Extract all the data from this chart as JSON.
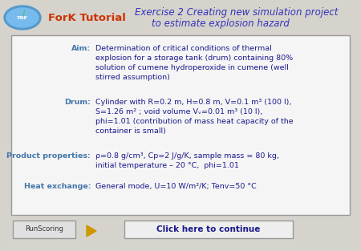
{
  "bg_color": "#d6d3cc",
  "header_fork_color": "#cc3300",
  "header_exercise_color": "#3333bb",
  "box_bg": "#f5f5f5",
  "box_edge": "#aaaaaa",
  "label_color": "#4477aa",
  "text_color": "#1a1a8c",
  "aim_label": "Aim:",
  "aim_text": "Determination of critical conditions of thermal\nexplosion for a storage tank (drum) containing 80%\nsolution of cumene hydroperoxide in cumene (well\nstirred assumption)",
  "drum_label": "Drum:",
  "drum_text": "Cylinder with R=0.2 m, H=0.8 m, V=0.1 m³ (100 l),\nS=1.26 m² ; void volume Vᵥ=0.01 m³ (10 l),\nphi=1.01 (contribution of mass heat capacity of the\ncontainer is small)",
  "prod_label": "Product properties:",
  "prod_text": "ρ=0.8 g/cm³, Cp=2 J/g/K, sample mass = 80 kg,\ninitial temperature – 20 °C,  phi=1.01",
  "heat_label": "Heat exchange:",
  "heat_text": "General mode, U=10 W/m²/K; Tenv=50 °C",
  "btn1_text": "RunScoring",
  "btn2_text": "Click here to continue",
  "fork_text": "ForK Tutorial",
  "ex_line1": "Exercise 2 Creating new simulation project",
  "ex_line2": "to estimate explosion hazard"
}
